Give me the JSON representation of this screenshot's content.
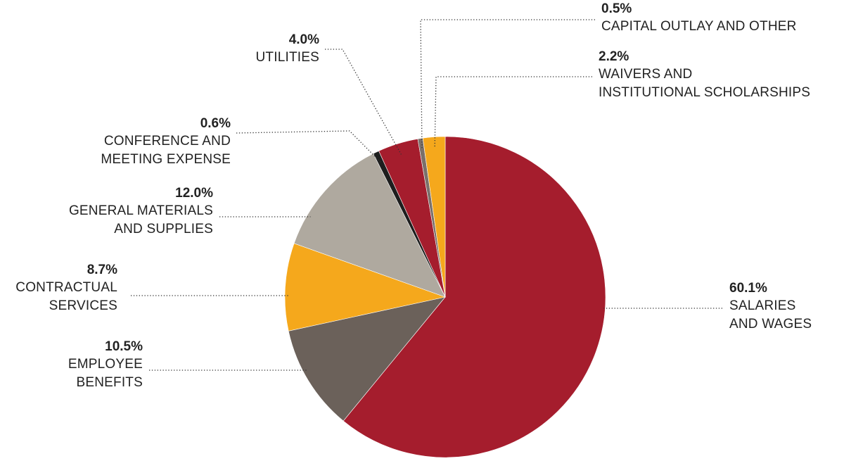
{
  "chart_data": {
    "type": "pie",
    "title": "",
    "legend": "none",
    "slices": [
      {
        "label": [
          "SALARIES",
          "AND WAGES"
        ],
        "value": 60.1,
        "display": "60.1%",
        "color": "#A51D2D"
      },
      {
        "label": [
          "EMPLOYEE",
          "BENEFITS"
        ],
        "value": 10.5,
        "display": "10.5%",
        "color": "#6B615A"
      },
      {
        "label": [
          "CONTRACTUAL",
          "SERVICES"
        ],
        "value": 8.7,
        "display": "8.7%",
        "color": "#F5A81C"
      },
      {
        "label": [
          "GENERAL MATERIALS",
          "AND SUPPLIES"
        ],
        "value": 12.0,
        "display": "12.0%",
        "color": "#AFA99F"
      },
      {
        "label": [
          "CONFERENCE AND",
          "MEETING EXPENSE"
        ],
        "value": 0.6,
        "display": "0.6%",
        "color": "#1E1E1E"
      },
      {
        "label": [
          "UTILITIES"
        ],
        "value": 4.0,
        "display": "4.0%",
        "color": "#A51D2D"
      },
      {
        "label": [
          "CAPITAL OUTLAY AND OTHER"
        ],
        "value": 0.5,
        "display": "0.5%",
        "color": "#7A706A"
      },
      {
        "label": [
          "WAIVERS AND",
          "INSTITUTIONAL SCHOLARSHIPS"
        ],
        "value": 2.2,
        "display": "2.2%",
        "color": "#F5A81C"
      }
    ]
  }
}
